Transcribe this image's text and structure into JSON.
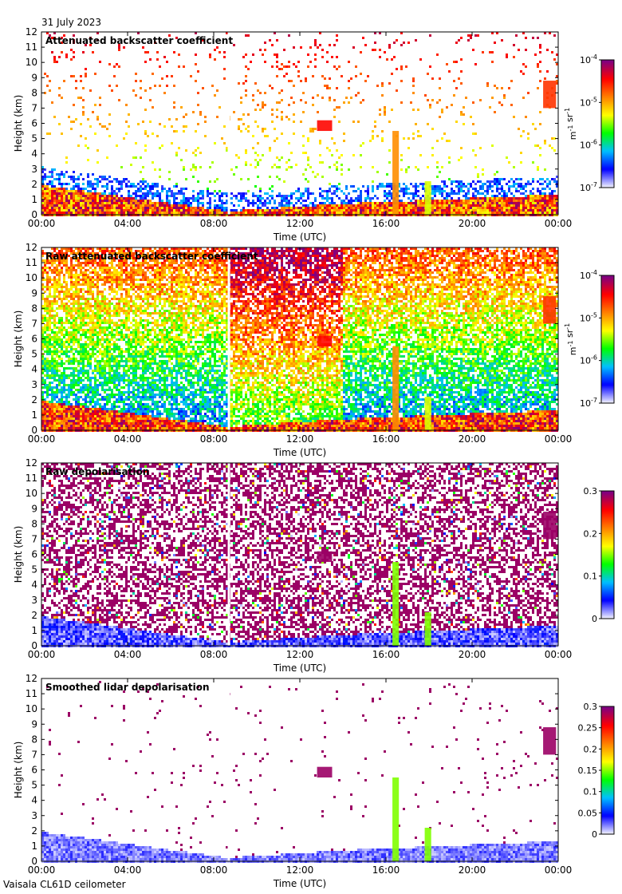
{
  "header": {
    "date": "31 July 2023"
  },
  "footer": {
    "instrument": "Vaisala CL61D ceilometer"
  },
  "chart_data": [
    {
      "type": "heatmap",
      "title": "Attenuated backscatter coefficient",
      "xlabel": "Time (UTC)",
      "ylabel": "Height (km)",
      "xlim": [
        0,
        24
      ],
      "ylim": [
        0,
        12
      ],
      "xticks": [
        "00:00",
        "04:00",
        "08:00",
        "12:00",
        "16:00",
        "20:00",
        "00:00"
      ],
      "yticks": [
        "0",
        "1",
        "2",
        "3",
        "4",
        "5",
        "6",
        "7",
        "8",
        "9",
        "10",
        "11",
        "12"
      ],
      "colorbar": {
        "scale": "log",
        "range": [
          1e-07,
          0.0001
        ],
        "ticks": [
          "10^-7",
          "10^-6",
          "10^-5",
          "10^-4"
        ],
        "label": "m^-1 sr^-1",
        "colors": [
          "#f0f0ff",
          "#0000ff",
          "#00c0ff",
          "#00ff00",
          "#ffff00",
          "#ff8000",
          "#ff0000",
          "#800080"
        ]
      },
      "features": [
        {
          "name": "boundary layer",
          "time_start": 0,
          "time_end": 8.6,
          "top_km_start": 2.0,
          "top_km_end": 0.3
        },
        {
          "name": "cloud",
          "time": 13.0,
          "height_km": 5.8
        },
        {
          "name": "precipitation",
          "time": 16.4,
          "height_km": 5.0
        },
        {
          "name": "high cloud",
          "time": 23.6,
          "height_km": 7.5
        }
      ]
    },
    {
      "type": "heatmap",
      "title": "Raw attenuated backscatter coefficient",
      "xlabel": "Time (UTC)",
      "ylabel": "Height (km)",
      "xlim": [
        0,
        24
      ],
      "ylim": [
        0,
        12
      ],
      "xticks": [
        "00:00",
        "04:00",
        "08:00",
        "12:00",
        "16:00",
        "20:00",
        "00:00"
      ],
      "yticks": [
        "0",
        "1",
        "2",
        "3",
        "4",
        "5",
        "6",
        "7",
        "8",
        "9",
        "10",
        "11",
        "12"
      ],
      "colorbar": {
        "scale": "log",
        "range": [
          1e-07,
          0.0001
        ],
        "ticks": [
          "10^-7",
          "10^-6",
          "10^-5",
          "10^-4"
        ],
        "label": "m^-1 sr^-1",
        "colors": [
          "#f0f0ff",
          "#0000ff",
          "#00c0ff",
          "#00ff00",
          "#ffff00",
          "#ff8000",
          "#ff0000",
          "#800080"
        ]
      }
    },
    {
      "type": "heatmap",
      "title": "Raw depolarisation",
      "xlabel": "Time (UTC)",
      "ylabel": "Height (km)",
      "xlim": [
        0,
        24
      ],
      "ylim": [
        0,
        12
      ],
      "xticks": [
        "00:00",
        "04:00",
        "08:00",
        "12:00",
        "16:00",
        "20:00",
        "00:00"
      ],
      "yticks": [
        "0",
        "1",
        "2",
        "3",
        "4",
        "5",
        "6",
        "7",
        "8",
        "9",
        "10",
        "11",
        "12"
      ],
      "colorbar": {
        "scale": "linear",
        "range": [
          0,
          0.3
        ],
        "ticks": [
          "0",
          "0.1",
          "0.2",
          "0.3"
        ],
        "colors": [
          "#f0f0ff",
          "#0000ff",
          "#00c0ff",
          "#00ff00",
          "#ffff00",
          "#ff8000",
          "#ff0000",
          "#800080"
        ]
      }
    },
    {
      "type": "heatmap",
      "title": "Smoothed lidar depolarisation",
      "xlabel": "Time (UTC)",
      "ylabel": "Height (km)",
      "xlim": [
        0,
        24
      ],
      "ylim": [
        0,
        12
      ],
      "xticks": [
        "00:00",
        "04:00",
        "08:00",
        "12:00",
        "16:00",
        "20:00",
        "00:00"
      ],
      "yticks": [
        "0",
        "1",
        "2",
        "3",
        "4",
        "5",
        "6",
        "7",
        "8",
        "9",
        "10",
        "11",
        "12"
      ],
      "colorbar": {
        "scale": "linear",
        "range": [
          0,
          0.3
        ],
        "ticks": [
          "0",
          "0.05",
          "0.1",
          "0.15",
          "0.2",
          "0.25",
          "0.3"
        ],
        "colors": [
          "#f0f0ff",
          "#0000ff",
          "#00c0ff",
          "#00ff00",
          "#ffff00",
          "#ff8000",
          "#ff0000",
          "#800080"
        ]
      }
    }
  ]
}
